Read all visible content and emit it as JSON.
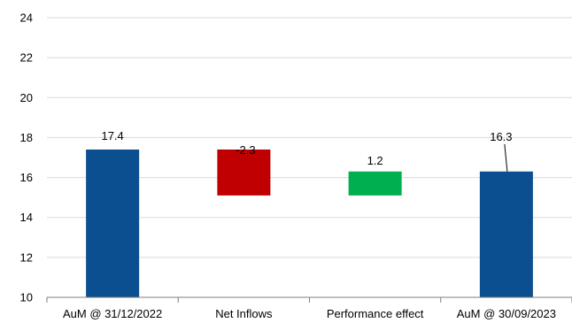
{
  "chart_data": {
    "type": "bar",
    "subtype": "waterfall",
    "categories": [
      "AuM @ 31/12/2022",
      "Net Inflows",
      "Performance effect",
      "AuM @ 30/09/2023"
    ],
    "series": [
      {
        "bars": [
          {
            "start": 10,
            "end": 17.4,
            "label": "17.4",
            "color": "#0b4f91"
          },
          {
            "start": 15.1,
            "end": 17.4,
            "label": "-2.3",
            "color": "#c00000"
          },
          {
            "start": 15.1,
            "end": 16.3,
            "label": "1.2",
            "color": "#00b050"
          },
          {
            "start": 10,
            "end": 16.3,
            "label": "16.3",
            "color": "#0b4f91"
          }
        ]
      }
    ],
    "ylim": [
      10,
      24
    ],
    "yticks": [
      "10",
      "12",
      "14",
      "16",
      "18",
      "20",
      "22",
      "24"
    ],
    "grid": true,
    "legend": "none",
    "title": "",
    "xlabel": "",
    "ylabel": ""
  }
}
